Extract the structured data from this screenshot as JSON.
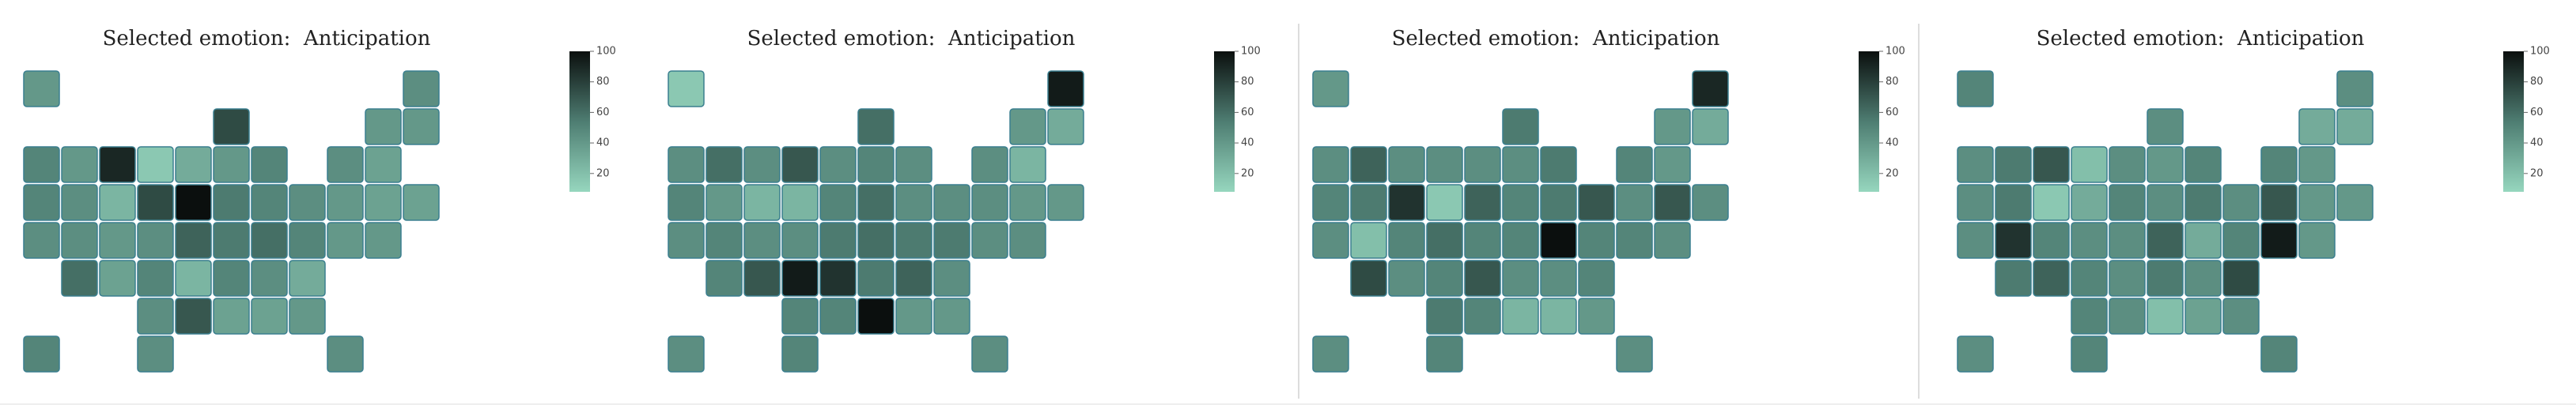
{
  "chart_data": [
    {
      "type": "choropleth",
      "title": "Selected emotion:  Anticipation",
      "values": [
        40,
        45,
        75,
        40,
        40,
        50,
        40,
        90,
        15,
        30,
        40,
        50,
        45,
        35,
        50,
        45,
        25,
        75,
        100,
        55,
        50,
        45,
        40,
        35,
        35,
        45,
        45,
        40,
        45,
        65,
        55,
        60,
        50,
        40,
        40,
        60,
        35,
        50,
        25,
        50,
        45,
        30,
        45,
        70,
        35,
        35,
        40,
        50,
        45,
        45
      ],
      "zlim": [
        8,
        100
      ],
      "zticks": [
        20,
        40,
        60,
        80,
        100
      ],
      "colorscale": [
        "#96d6be",
        "#4e7d72",
        "#0b0f0e"
      ]
    },
    {
      "type": "choropleth",
      "title": "Selected emotion:  Anticipation",
      "values": [
        15,
        95,
        60,
        40,
        30,
        45,
        60,
        45,
        70,
        45,
        50,
        45,
        45,
        25,
        50,
        40,
        25,
        25,
        50,
        60,
        45,
        45,
        45,
        40,
        40,
        45,
        50,
        45,
        45,
        55,
        60,
        55,
        55,
        45,
        45,
        50,
        70,
        95,
        85,
        55,
        65,
        45,
        50,
        50,
        100,
        40,
        40,
        45,
        50,
        45
      ],
      "zlim": [
        8,
        100
      ],
      "zticks": [
        20,
        40,
        60,
        80,
        100
      ],
      "colorscale": [
        "#96d6be",
        "#4e7d72",
        "#0b0f0e"
      ]
    },
    {
      "type": "choropleth",
      "title": "Selected emotion:  Anticipation",
      "values": [
        40,
        90,
        55,
        40,
        30,
        45,
        65,
        45,
        45,
        45,
        45,
        55,
        50,
        40,
        50,
        55,
        85,
        15,
        65,
        50,
        55,
        70,
        45,
        70,
        45,
        45,
        20,
        50,
        60,
        50,
        50,
        100,
        50,
        50,
        45,
        75,
        45,
        50,
        70,
        45,
        45,
        50,
        55,
        50,
        25,
        25,
        40,
        45,
        50,
        45
      ],
      "zlim": [
        8,
        100
      ],
      "zticks": [
        20,
        40,
        60,
        80,
        100
      ],
      "colorscale": [
        "#96d6be",
        "#4e7d72",
        "#0b0f0e"
      ]
    },
    {
      "type": "choropleth",
      "title": "Selected emotion:  Anticipation",
      "values": [
        50,
        45,
        45,
        30,
        30,
        45,
        55,
        70,
        20,
        45,
        40,
        50,
        50,
        40,
        45,
        55,
        15,
        30,
        50,
        45,
        55,
        45,
        70,
        40,
        40,
        45,
        85,
        50,
        45,
        45,
        65,
        30,
        50,
        95,
        40,
        55,
        65,
        50,
        45,
        55,
        45,
        75,
        50,
        45,
        20,
        35,
        45,
        45,
        50,
        50
      ],
      "zlim": [
        8,
        100
      ],
      "zticks": [
        20,
        40,
        60,
        80,
        100
      ],
      "colorscale": [
        "#96d6be",
        "#4e7d72",
        "#0b0f0e"
      ]
    }
  ]
}
